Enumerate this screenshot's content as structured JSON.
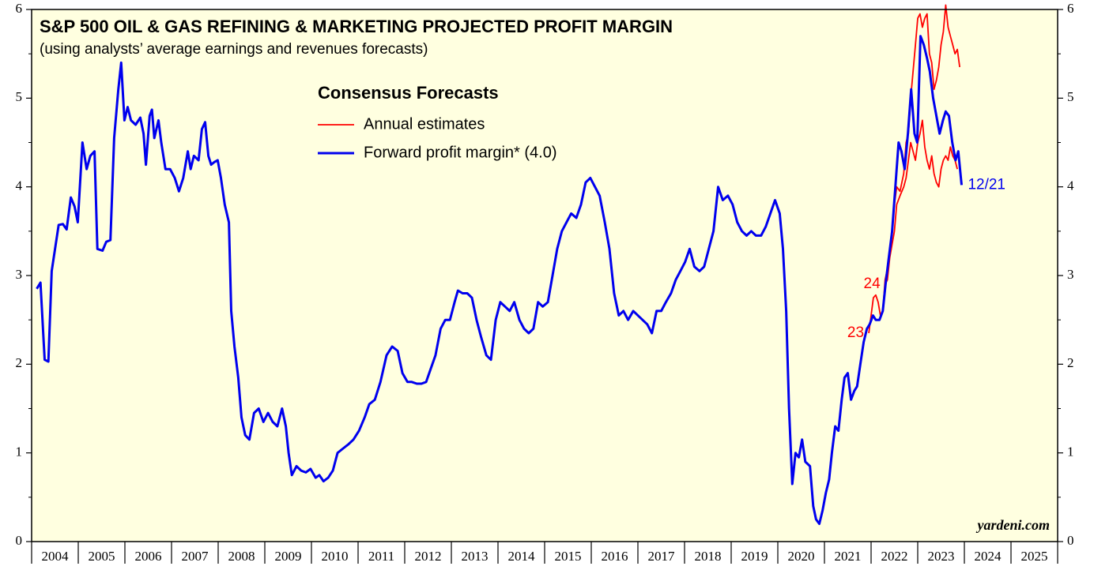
{
  "chart_data": {
    "type": "line",
    "title": "S&P 500 OIL & GAS REFINING & MARKETING PROJECTED PROFIT MARGIN",
    "subtitle": "(using analysts’ average earnings and revenues forecasts)",
    "legend_title": "Consensus Forecasts",
    "source": "yardeni.com",
    "xlim": [
      2004,
      2026
    ],
    "xticks": [
      2004,
      2005,
      2006,
      2007,
      2008,
      2009,
      2010,
      2011,
      2012,
      2013,
      2014,
      2015,
      2016,
      2017,
      2018,
      2019,
      2020,
      2021,
      2022,
      2023,
      2024,
      2025,
      2026
    ],
    "ylim": [
      0,
      6
    ],
    "yticks": [
      0,
      1,
      2,
      3,
      4,
      5,
      6
    ],
    "yminorticks": [
      0.5,
      1.5,
      2.5,
      3.5,
      4.5,
      5.5
    ],
    "series": [
      {
        "name": "Annual estimates",
        "color": "#ff0000",
        "piece_labels": [
          "23",
          "24"
        ],
        "x": [
          2021.95,
          2022.0,
          2022.05,
          2022.1,
          2022.15,
          2022.2,
          2022.25,
          2022.3,
          2022.4,
          2022.5,
          2022.55,
          2022.62,
          2022.7,
          2022.75,
          2022.8,
          2022.85,
          2022.9,
          2022.95,
          2023.0,
          2023.05,
          2023.1,
          2023.15,
          2023.2,
          2023.25,
          2023.3,
          2023.35,
          2023.4,
          2023.45,
          2023.5,
          2023.55,
          2023.6,
          2023.65,
          2023.7,
          2023.75,
          2023.8,
          2023.85,
          2023.9,
          null,
          2022.3,
          2022.35,
          2022.4,
          2022.5,
          2022.55,
          2022.62,
          2022.7,
          2022.75,
          2022.8,
          2022.85,
          2022.9,
          2022.95,
          2023.0,
          2023.05,
          2023.1,
          2023.15,
          2023.2,
          2023.25,
          2023.3,
          2023.35,
          2023.4,
          2023.45,
          2023.5,
          2023.55,
          2023.6,
          2023.65,
          2023.7,
          2023.75,
          2023.8,
          2023.85
        ],
        "values": [
          2.35,
          2.55,
          2.75,
          2.78,
          2.7,
          2.55,
          2.6,
          2.95,
          3.2,
          3.8,
          4.0,
          3.95,
          4.15,
          4.5,
          4.6,
          5.0,
          5.3,
          5.6,
          5.9,
          5.95,
          5.8,
          5.9,
          5.95,
          5.5,
          5.4,
          5.1,
          5.2,
          5.35,
          5.6,
          5.75,
          6.05,
          5.8,
          5.7,
          5.6,
          5.5,
          5.55,
          5.35,
          null,
          2.9,
          2.95,
          3.2,
          3.5,
          3.8,
          3.9,
          4.0,
          4.1,
          4.3,
          4.5,
          4.4,
          4.3,
          4.5,
          4.6,
          4.75,
          4.45,
          4.3,
          4.2,
          4.35,
          4.15,
          4.05,
          4.0,
          4.2,
          4.3,
          4.35,
          4.3,
          4.45,
          4.35,
          4.3,
          4.2
        ]
      },
      {
        "name": "Forward profit margin* (4.0)",
        "color": "#0000ee",
        "end_label": "12/21",
        "x": [
          2004.11,
          2004.19,
          2004.28,
          2004.36,
          2004.43,
          2004.58,
          2004.67,
          2004.75,
          2004.84,
          2004.92,
          2004.99,
          2005.09,
          2005.18,
          2005.26,
          2005.35,
          2005.41,
          2005.52,
          2005.6,
          2005.69,
          2005.77,
          2005.86,
          2005.92,
          2005.99,
          2006.06,
          2006.13,
          2006.23,
          2006.33,
          2006.4,
          2006.45,
          2006.53,
          2006.58,
          2006.63,
          2006.72,
          2006.78,
          2006.87,
          2006.97,
          2007.07,
          2007.16,
          2007.25,
          2007.35,
          2007.41,
          2007.48,
          2007.58,
          2007.65,
          2007.72,
          2007.79,
          2007.85,
          2007.92,
          2007.99,
          2008.06,
          2008.14,
          2008.23,
          2008.28,
          2008.35,
          2008.43,
          2008.5,
          2008.58,
          2008.67,
          2008.77,
          2008.87,
          2008.97,
          2009.07,
          2009.17,
          2009.27,
          2009.37,
          2009.45,
          2009.51,
          2009.58,
          2009.68,
          2009.78,
          2009.88,
          2009.98,
          2010.09,
          2010.17,
          2010.26,
          2010.36,
          2010.46,
          2010.56,
          2010.68,
          2010.8,
          2010.9,
          2011.02,
          2011.14,
          2011.24,
          2011.36,
          2011.48,
          2011.61,
          2011.73,
          2011.85,
          2011.95,
          2012.06,
          2012.15,
          2012.26,
          2012.36,
          2012.46,
          2012.56,
          2012.66,
          2012.77,
          2012.87,
          2012.97,
          2013.07,
          2013.14,
          2013.24,
          2013.34,
          2013.44,
          2013.54,
          2013.64,
          2013.75,
          2013.85,
          2013.95,
          2014.05,
          2014.15,
          2014.25,
          2014.35,
          2014.46,
          2014.56,
          2014.66,
          2014.76,
          2014.86,
          2014.96,
          2015.07,
          2015.17,
          2015.27,
          2015.37,
          2015.47,
          2015.57,
          2015.68,
          2015.78,
          2015.88,
          2015.98,
          2016.08,
          2016.18,
          2016.29,
          2016.39,
          2016.49,
          2016.59,
          2016.69,
          2016.79,
          2016.9,
          2017.0,
          2017.1,
          2017.2,
          2017.3,
          2017.4,
          2017.5,
          2017.6,
          2017.71,
          2017.81,
          2017.91,
          2018.01,
          2018.11,
          2018.21,
          2018.32,
          2018.42,
          2018.52,
          2018.62,
          2018.72,
          2018.82,
          2018.93,
          2019.03,
          2019.13,
          2019.23,
          2019.33,
          2019.43,
          2019.53,
          2019.64,
          2019.74,
          2019.84,
          2019.94,
          2020.04,
          2020.11,
          2020.18,
          2020.24,
          2020.31,
          2020.38,
          2020.45,
          2020.52,
          2020.59,
          2020.69,
          2020.76,
          2020.82,
          2020.89,
          2020.96,
          2021.03,
          2021.1,
          2021.16,
          2021.23,
          2021.3,
          2021.37,
          2021.43,
          2021.5,
          2021.57,
          2021.64,
          2021.7,
          2021.77,
          2021.84,
          2021.91,
          2021.97,
          2022.04,
          2022.1,
          2022.18,
          2022.25,
          2022.31,
          2022.38,
          2022.45,
          2022.52,
          2022.59,
          2022.65,
          2022.72,
          2022.79,
          2022.86,
          2022.93,
          2022.99,
          2023.06,
          2023.13,
          2023.2,
          2023.26,
          2023.33,
          2023.4,
          2023.47,
          2023.54,
          2023.6,
          2023.67,
          2023.74,
          2023.81,
          2023.87,
          2023.94
        ],
        "values": [
          2.85,
          2.92,
          2.05,
          2.03,
          3.05,
          3.57,
          3.58,
          3.52,
          3.88,
          3.78,
          3.6,
          4.5,
          4.2,
          4.35,
          4.4,
          3.3,
          3.28,
          3.38,
          3.4,
          4.55,
          5.1,
          5.4,
          4.75,
          4.9,
          4.75,
          4.7,
          4.78,
          4.6,
          4.25,
          4.8,
          4.87,
          4.55,
          4.75,
          4.5,
          4.2,
          4.2,
          4.1,
          3.95,
          4.1,
          4.4,
          4.2,
          4.35,
          4.3,
          4.65,
          4.73,
          4.35,
          4.25,
          4.28,
          4.3,
          4.1,
          3.8,
          3.6,
          2.6,
          2.2,
          1.85,
          1.4,
          1.2,
          1.15,
          1.45,
          1.5,
          1.35,
          1.45,
          1.35,
          1.3,
          1.5,
          1.3,
          1.0,
          0.75,
          0.85,
          0.8,
          0.78,
          0.82,
          0.72,
          0.75,
          0.68,
          0.72,
          0.8,
          1.0,
          1.05,
          1.1,
          1.15,
          1.25,
          1.4,
          1.55,
          1.6,
          1.8,
          2.1,
          2.2,
          2.15,
          1.9,
          1.8,
          1.8,
          1.78,
          1.78,
          1.8,
          1.95,
          2.1,
          2.4,
          2.5,
          2.5,
          2.7,
          2.83,
          2.8,
          2.8,
          2.75,
          2.5,
          2.3,
          2.1,
          2.05,
          2.5,
          2.7,
          2.65,
          2.6,
          2.7,
          2.5,
          2.4,
          2.35,
          2.4,
          2.7,
          2.65,
          2.7,
          3.0,
          3.3,
          3.5,
          3.6,
          3.7,
          3.65,
          3.8,
          4.05,
          4.1,
          4.0,
          3.9,
          3.6,
          3.3,
          2.8,
          2.55,
          2.6,
          2.5,
          2.6,
          2.55,
          2.5,
          2.45,
          2.35,
          2.6,
          2.6,
          2.7,
          2.8,
          2.95,
          3.05,
          3.15,
          3.3,
          3.1,
          3.05,
          3.1,
          3.3,
          3.5,
          4.0,
          3.85,
          3.9,
          3.8,
          3.6,
          3.5,
          3.45,
          3.5,
          3.45,
          3.45,
          3.55,
          3.7,
          3.85,
          3.7,
          3.3,
          2.6,
          1.5,
          0.65,
          1.0,
          0.95,
          1.15,
          0.9,
          0.85,
          0.4,
          0.25,
          0.2,
          0.35,
          0.55,
          0.7,
          1.0,
          1.3,
          1.25,
          1.6,
          1.85,
          1.9,
          1.6,
          1.7,
          1.75,
          2.0,
          2.25,
          2.4,
          2.45,
          2.55,
          2.5,
          2.5,
          2.6,
          2.9,
          3.2,
          3.5,
          4.0,
          4.5,
          4.4,
          4.2,
          4.6,
          5.1,
          4.6,
          4.5,
          5.7,
          5.6,
          5.45,
          5.3,
          5.0,
          4.8,
          4.6,
          4.75,
          4.85,
          4.8,
          4.5,
          4.3,
          4.4,
          4.02
        ]
      }
    ]
  }
}
